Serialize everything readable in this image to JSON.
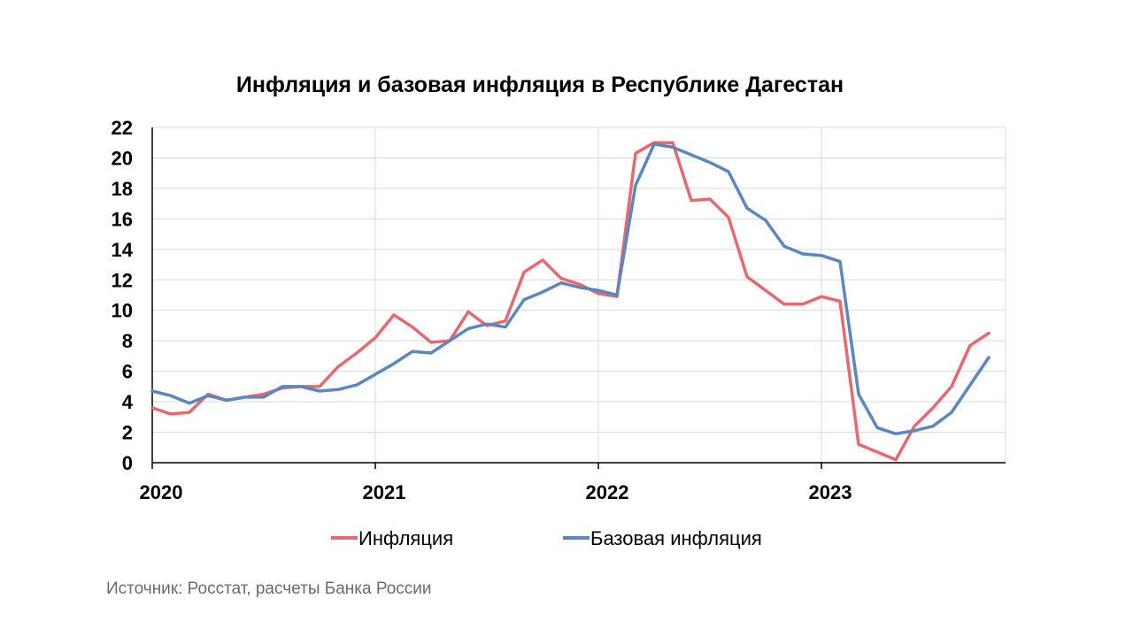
{
  "chart_data": {
    "type": "line",
    "title": "Инфляция и базовая инфляция в Республике Дагестан",
    "xlabel": "",
    "ylabel": "",
    "ylim": [
      0,
      22
    ],
    "yticks": [
      0,
      2,
      4,
      6,
      8,
      10,
      12,
      14,
      16,
      18,
      20,
      22
    ],
    "x_tick_labels": [
      "2020",
      "2021",
      "2022",
      "2023"
    ],
    "x": [
      "2020-01",
      "2020-02",
      "2020-03",
      "2020-04",
      "2020-05",
      "2020-06",
      "2020-07",
      "2020-08",
      "2020-09",
      "2020-10",
      "2020-11",
      "2020-12",
      "2021-01",
      "2021-02",
      "2021-03",
      "2021-04",
      "2021-05",
      "2021-06",
      "2021-07",
      "2021-08",
      "2021-09",
      "2021-10",
      "2021-11",
      "2021-12",
      "2022-01",
      "2022-02",
      "2022-03",
      "2022-04",
      "2022-05",
      "2022-06",
      "2022-07",
      "2022-08",
      "2022-09",
      "2022-10",
      "2022-11",
      "2022-12",
      "2023-01",
      "2023-02",
      "2023-03",
      "2023-04",
      "2023-05",
      "2023-06",
      "2023-07",
      "2023-08",
      "2023-09",
      "2023-10"
    ],
    "grid": true,
    "legend_position": "bottom",
    "series": [
      {
        "name": "Инфляция",
        "color": "#e8686e",
        "values": [
          3.6,
          3.2,
          3.3,
          4.5,
          4.1,
          4.3,
          4.5,
          4.9,
          5.0,
          5.0,
          6.3,
          7.2,
          8.2,
          9.7,
          8.9,
          7.9,
          8.0,
          9.9,
          9.0,
          9.3,
          12.5,
          13.3,
          12.1,
          11.7,
          11.1,
          10.9,
          20.3,
          21.0,
          21.0,
          17.2,
          17.3,
          16.1,
          12.2,
          11.3,
          10.4,
          10.4,
          10.9,
          10.6,
          1.2,
          0.7,
          0.2,
          2.4,
          3.6,
          5.0,
          7.7,
          8.5
        ]
      },
      {
        "name": "Базовая инфляция",
        "color": "#5a86c2",
        "values": [
          4.7,
          4.4,
          3.9,
          4.4,
          4.1,
          4.3,
          4.3,
          5.0,
          5.0,
          4.7,
          4.8,
          5.1,
          5.8,
          6.5,
          7.3,
          7.2,
          8.0,
          8.8,
          9.1,
          8.9,
          10.7,
          11.2,
          11.8,
          11.5,
          11.3,
          11.0,
          18.2,
          20.9,
          20.7,
          20.2,
          19.7,
          19.1,
          16.7,
          15.9,
          14.2,
          13.7,
          13.6,
          13.2,
          4.5,
          2.3,
          1.9,
          2.1,
          2.4,
          3.3,
          5.1,
          6.9
        ]
      }
    ]
  },
  "source_note": "Источник: Росстат, расчеты Банка России"
}
